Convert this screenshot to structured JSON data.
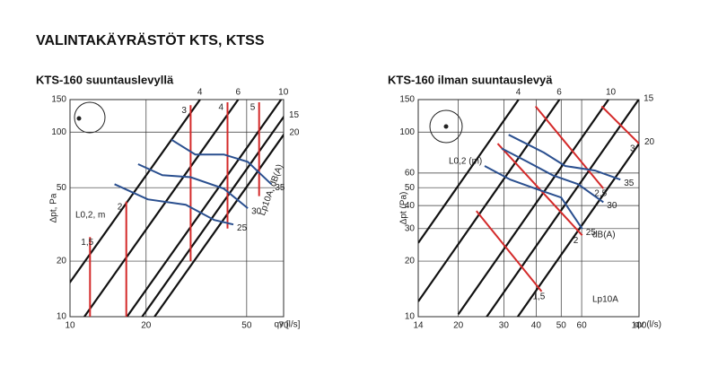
{
  "title": "VALINTAKÄYRÄSTÖT KTS, KTSS",
  "chart_data": [
    {
      "type": "line",
      "title": "KTS-160 suuntauslevyllä",
      "xlabel": "qv [l/s]",
      "ylabel": "Δpt, Pa",
      "xlog": true,
      "ylog": true,
      "grid": true,
      "xlim": [
        10,
        70
      ],
      "ylim": [
        10,
        150
      ],
      "xticks": [
        10,
        20,
        50,
        70
      ],
      "yticks": [
        10,
        20,
        50,
        100,
        150
      ],
      "annotations": [
        {
          "text": "L0,2, m",
          "color": "#d42a2a"
        },
        {
          "text": "Lp10A, dB(A)",
          "color": "#2a4f8f"
        }
      ],
      "series": [
        {
          "name": "4",
          "color": "#111111",
          "x": [
            8.0,
            32.7
          ],
          "values": [
            10,
            150
          ]
        },
        {
          "name": "6",
          "color": "#111111",
          "x": [
            11.4,
            46.3
          ],
          "values": [
            10,
            150
          ]
        },
        {
          "name": "10",
          "color": "#111111",
          "x": [
            16.8,
            68.4
          ],
          "values": [
            10,
            150
          ]
        },
        {
          "name": "15",
          "color": "#111111",
          "x": [
            19.3,
            78.3
          ],
          "values": [
            10,
            150
          ]
        },
        {
          "name": "20",
          "color": "#111111",
          "x": [
            21.6,
            87.9
          ],
          "values": [
            10,
            150
          ]
        },
        {
          "name": "1,5",
          "color": "#d42a2a",
          "x": [
            12,
            12
          ],
          "values": [
            10,
            27
          ]
        },
        {
          "name": "2",
          "color": "#d42a2a",
          "x": [
            16.7,
            16.7
          ],
          "values": [
            10,
            42
          ]
        },
        {
          "name": "3",
          "color": "#d42a2a",
          "x": [
            30,
            30
          ],
          "values": [
            20,
            140
          ]
        },
        {
          "name": "4",
          "color": "#d42a2a",
          "x": [
            42,
            42
          ],
          "values": [
            30,
            145
          ]
        },
        {
          "name": "5",
          "color": "#d42a2a",
          "x": [
            56,
            56
          ],
          "values": [
            45,
            145
          ]
        },
        {
          "name": "35",
          "color": "#2a4f8f",
          "x": [
            25.2,
            31.3,
            40.6,
            50.5,
            62.6
          ],
          "values": [
            91,
            75.6,
            75.6,
            69,
            52.2
          ]
        },
        {
          "name": "30",
          "color": "#2a4f8f",
          "x": [
            18.6,
            23.2,
            30,
            40.6,
            50.5
          ],
          "values": [
            67,
            58.4,
            57,
            49.4,
            38.7
          ]
        },
        {
          "name": "25",
          "color": "#2a4f8f",
          "x": [
            15.0,
            20.3,
            28.7,
            37.2,
            44.3
          ],
          "values": [
            52.2,
            43.2,
            40.4,
            33.4,
            31.6
          ]
        }
      ]
    },
    {
      "type": "line",
      "title": "KTS-160 ilman suuntauslevyä",
      "xlabel": "qv (l/s)",
      "ylabel": "Δpt (Pa)",
      "xlog": true,
      "ylog": true,
      "grid": true,
      "xlim": [
        14,
        100
      ],
      "ylim": [
        10,
        150
      ],
      "xticks": [
        14,
        20,
        30,
        40,
        50,
        60,
        100
      ],
      "yticks": [
        10,
        20,
        30,
        40,
        50,
        60,
        100,
        150
      ],
      "annotations": [
        {
          "text": "L0,2 (m)",
          "color": "#d42a2a"
        },
        {
          "text": "Lp10A",
          "color": "#2a4f8f"
        },
        {
          "text": "dB(A)",
          "color": "#2a4f8f"
        }
      ],
      "series": [
        {
          "name": "4",
          "color": "#111111",
          "x": [
            14,
            34.2
          ],
          "values": [
            25.1,
            150
          ]
        },
        {
          "name": "6",
          "color": "#111111",
          "x": [
            14,
            49.2
          ],
          "values": [
            12.1,
            150
          ]
        },
        {
          "name": "10",
          "color": "#111111",
          "x": [
            20,
            76.2
          ],
          "values": [
            10.3,
            150
          ]
        },
        {
          "name": "15",
          "color": "#111111",
          "x": [
            25,
            100
          ],
          "values": [
            9.4,
            151
          ]
        },
        {
          "name": "20",
          "color": "#111111",
          "x": [
            30,
            100
          ],
          "values": [
            7.8,
            86.5
          ]
        },
        {
          "name": "1,5",
          "color": "#d42a2a",
          "x": [
            23.5,
            42
          ],
          "values": [
            37.4,
            13.7
          ]
        },
        {
          "name": "2",
          "color": "#d42a2a",
          "x": [
            28.4,
            60.3
          ],
          "values": [
            86.6,
            27.6
          ]
        },
        {
          "name": "2,5",
          "color": "#d42a2a",
          "x": [
            39.8,
            72.8
          ],
          "values": [
            138,
            49.5
          ]
        },
        {
          "name": "3",
          "color": "#d42a2a",
          "x": [
            71.7,
            100
          ],
          "values": [
            138,
            86.6
          ]
        },
        {
          "name": "35",
          "color": "#2a4f8f",
          "x": [
            31.3,
            42.9,
            51.8,
            67.6,
            84.7
          ],
          "values": [
            96.7,
            77.4,
            65.5,
            61.9,
            55.3
          ]
        },
        {
          "name": "30",
          "color": "#2a4f8f",
          "x": [
            29.4,
            36.9,
            46.3,
            58.1,
            72.8
          ],
          "values": [
            81.6,
            69.2,
            58.4,
            52.2,
            41.7
          ]
        },
        {
          "name": "25",
          "color": "#2a4f8f",
          "x": [
            25.3,
            31.8,
            39.8,
            50,
            60.3
          ],
          "values": [
            65.5,
            55.3,
            49.4,
            44.2,
            29.9
          ]
        }
      ]
    }
  ]
}
